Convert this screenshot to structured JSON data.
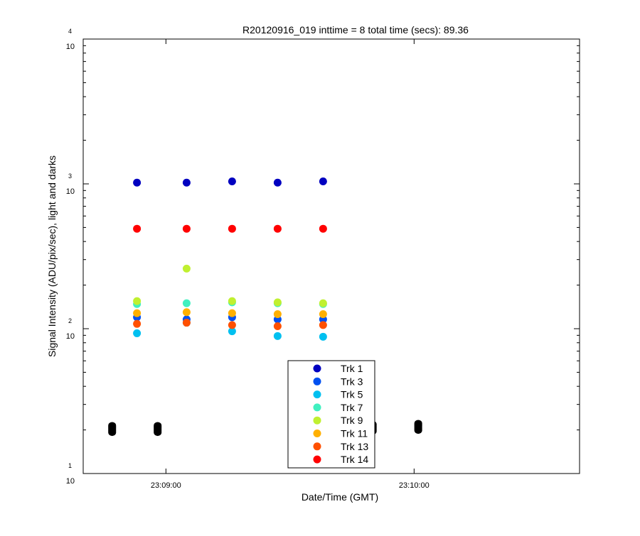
{
  "chart_data": {
    "type": "scatter",
    "title": "R20120916_019 inttime = 8 total time (secs): 89.36",
    "xlabel": "Date/Time (GMT)",
    "ylabel": "Signal Intensity (ADU/pix/sec), light and darks",
    "yscale": "log",
    "ylim": [
      10,
      10000
    ],
    "xlim": [
      "23:08:40",
      "23:10:40"
    ],
    "x_ticks": [
      "23:09:00",
      "23:10:00"
    ],
    "y_ticks": [
      {
        "base": "10",
        "exp": "1",
        "value": 10
      },
      {
        "base": "10",
        "exp": "2",
        "value": 100
      },
      {
        "base": "10",
        "exp": "3",
        "value": 1000
      },
      {
        "base": "10",
        "exp": "4",
        "value": 10000
      }
    ],
    "grid": false,
    "legend_position": "bottom-center",
    "x": [
      "23:08:53",
      "23:09:05",
      "23:09:16",
      "23:09:27",
      "23:09:38"
    ],
    "series": [
      {
        "name": "Trk 1",
        "color": "#0000c0",
        "values": [
          1020,
          1020,
          1040,
          1020,
          1040
        ]
      },
      {
        "name": "Trk 3",
        "color": "#0050f0",
        "values": [
          120,
          116,
          120,
          116,
          116
        ]
      },
      {
        "name": "Trk 5",
        "color": "#00c0f0",
        "values": [
          93,
          110,
          96,
          89,
          88
        ]
      },
      {
        "name": "Trk 7",
        "color": "#40f0c0",
        "values": [
          148,
          150,
          152,
          150,
          148
        ]
      },
      {
        "name": "Trk 9",
        "color": "#c0f030",
        "values": [
          155,
          260,
          155,
          152,
          150
        ]
      },
      {
        "name": "Trk 11",
        "color": "#ffb000",
        "values": [
          128,
          130,
          128,
          126,
          126
        ]
      },
      {
        "name": "Trk 13",
        "color": "#ff5000",
        "values": [
          108,
          110,
          106,
          104,
          106
        ]
      },
      {
        "name": "Trk 14",
        "color": "#ff0000",
        "values": [
          490,
          490,
          490,
          490,
          490
        ]
      }
    ],
    "darks": {
      "color": "#000000",
      "x": [
        "23:08:47",
        "23:08:58",
        "23:09:50",
        "23:10:01"
      ],
      "values": [
        20.3,
        20.3,
        20.7,
        21.0
      ]
    }
  }
}
